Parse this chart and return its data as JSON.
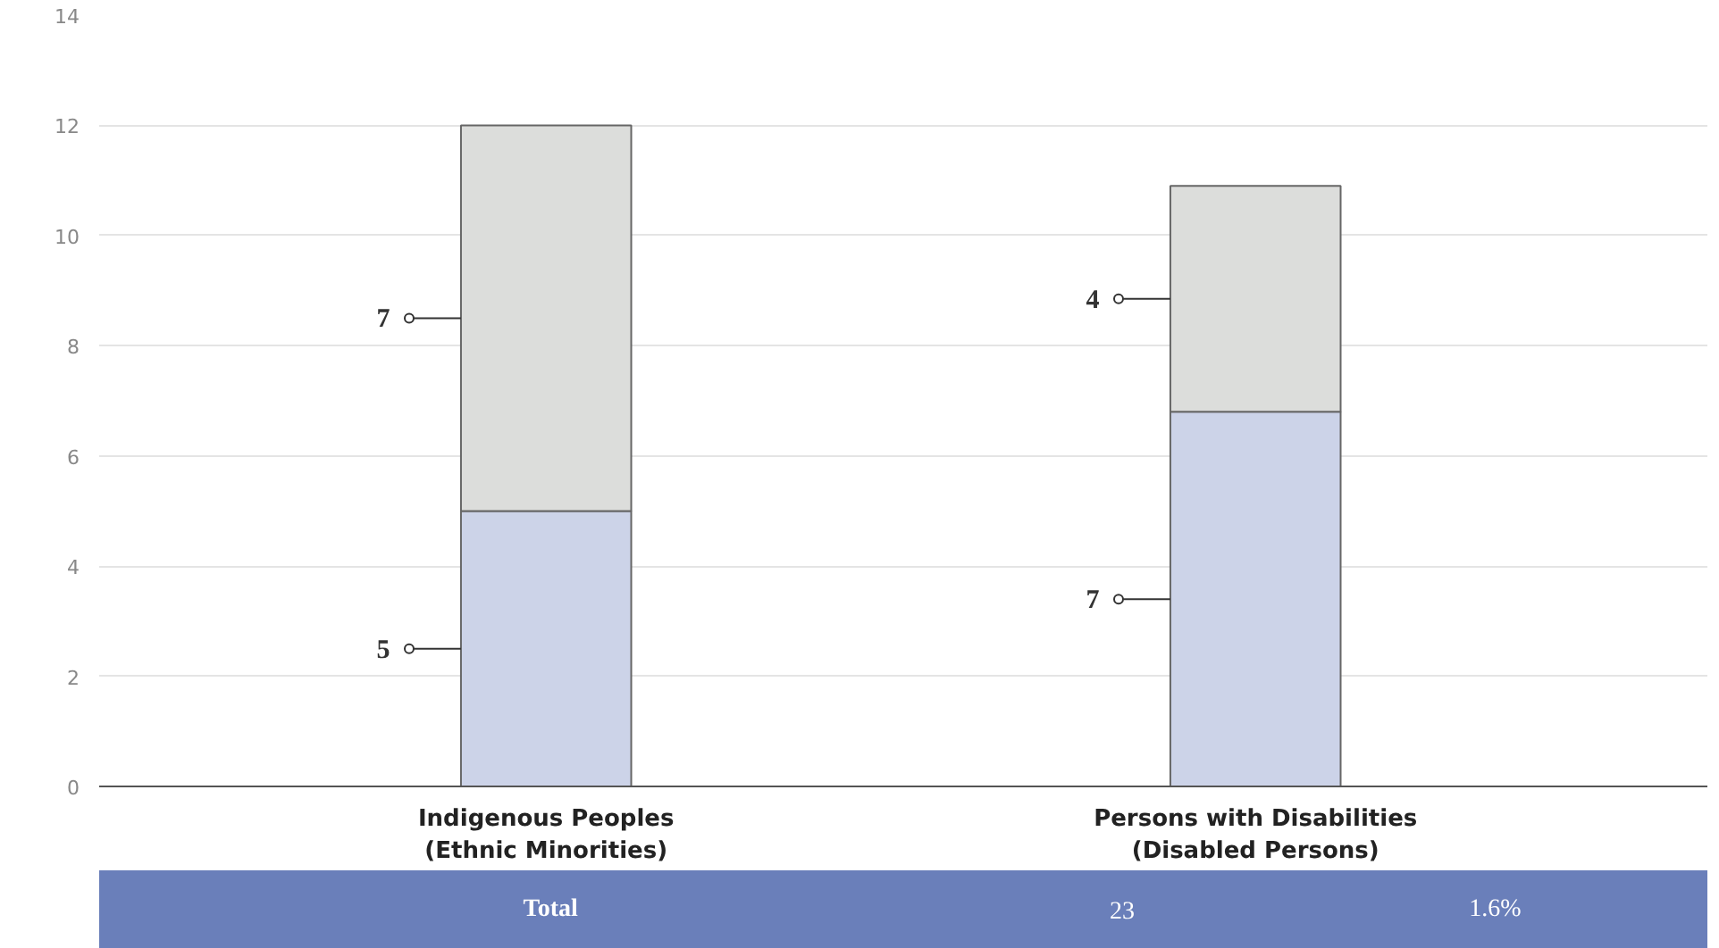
{
  "chart_data": {
    "type": "bar",
    "stacked": true,
    "categories": [
      "Indigenous Peoples\n(Ethnic Minorities)",
      "Persons with Disabilities\n(Disabled Persons)"
    ],
    "series": [
      {
        "color": "#ccd3e8",
        "values": [
          5,
          6.8
        ],
        "value_labels": [
          "5",
          "7"
        ]
      },
      {
        "color": "#dcdddb",
        "values": [
          7,
          4.1
        ],
        "value_labels": [
          "7",
          "4"
        ]
      }
    ],
    "ylim": [
      0,
      14
    ],
    "yticks": [
      0,
      2,
      4,
      6,
      8,
      10,
      12,
      14
    ],
    "grid": "y",
    "annotations": [
      "Total",
      "23",
      "1.6%"
    ]
  }
}
